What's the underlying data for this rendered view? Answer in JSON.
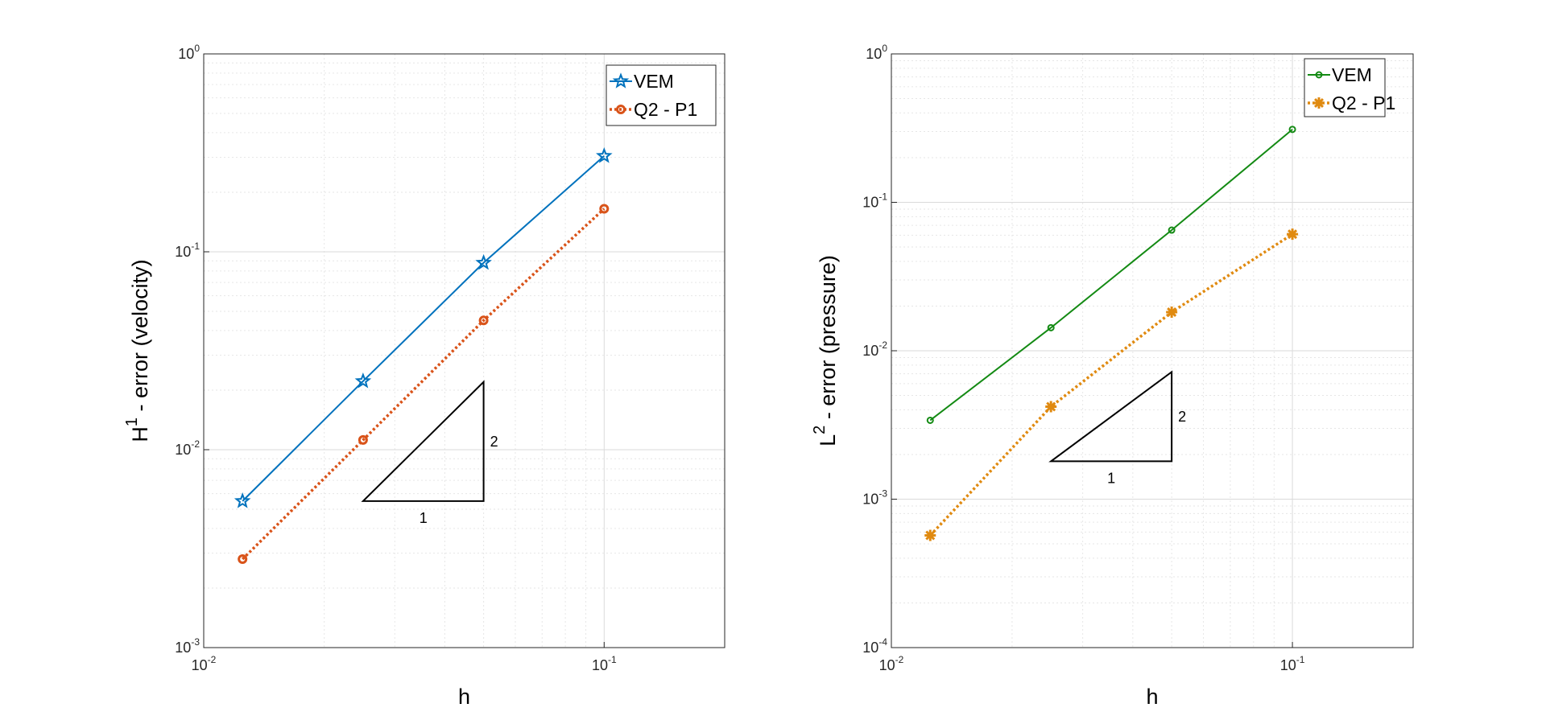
{
  "chart_data": [
    {
      "type": "line",
      "xscale": "log",
      "yscale": "log",
      "xlabel": "h",
      "ylabel": "H",
      "ylabel_sup": "1",
      "ylabel_rest": " - error (velocity)",
      "xlim": [
        0.01,
        0.2
      ],
      "ylim": [
        0.001,
        1
      ],
      "xticks": [
        {
          "base": "10",
          "exp": "-2",
          "value": 0.01
        },
        {
          "base": "10",
          "exp": "-1",
          "value": 0.1
        }
      ],
      "yticks": [
        {
          "base": "10",
          "exp": "-3",
          "value": 0.001
        },
        {
          "base": "10",
          "exp": "-2",
          "value": 0.01
        },
        {
          "base": "10",
          "exp": "-1",
          "value": 0.1
        },
        {
          "base": "10",
          "exp": "0",
          "value": 1
        }
      ],
      "legend_position": "top-right",
      "series": [
        {
          "name": "VEM",
          "color": "#0072BD",
          "marker": "star",
          "linestyle": "solid",
          "x": [
            0.0125,
            0.025,
            0.05,
            0.1
          ],
          "y": [
            0.0055,
            0.0222,
            0.088,
            0.305
          ]
        },
        {
          "name": "Q2 - P1",
          "color": "#D95319",
          "marker": "circle",
          "linestyle": "dotted",
          "x": [
            0.0125,
            0.025,
            0.05,
            0.1
          ],
          "y": [
            0.0028,
            0.0112,
            0.045,
            0.165
          ]
        }
      ],
      "slope_triangle": {
        "run_label": "1",
        "rise_label": "2",
        "x0": 0.025,
        "x1": 0.05,
        "y0": 0.0055,
        "y1": 0.022
      }
    },
    {
      "type": "line",
      "xscale": "log",
      "yscale": "log",
      "xlabel": "h",
      "ylabel": "L",
      "ylabel_sup": "2",
      "ylabel_rest": " - error (pressure)",
      "xlim": [
        0.01,
        0.2
      ],
      "ylim": [
        0.0001,
        1
      ],
      "xticks": [
        {
          "base": "10",
          "exp": "-2",
          "value": 0.01
        },
        {
          "base": "10",
          "exp": "-1",
          "value": 0.1
        }
      ],
      "yticks": [
        {
          "base": "10",
          "exp": "-4",
          "value": 0.0001
        },
        {
          "base": "10",
          "exp": "-3",
          "value": 0.001
        },
        {
          "base": "10",
          "exp": "-2",
          "value": 0.01
        },
        {
          "base": "10",
          "exp": "-1",
          "value": 0.1
        },
        {
          "base": "10",
          "exp": "0",
          "value": 1
        }
      ],
      "legend_position": "top-right",
      "series": [
        {
          "name": "VEM",
          "color": "#138A13",
          "marker": "circle-small",
          "linestyle": "solid",
          "x": [
            0.0125,
            0.025,
            0.05,
            0.1
          ],
          "y": [
            0.0034,
            0.0143,
            0.065,
            0.31
          ]
        },
        {
          "name": "Q2 - P1",
          "color": "#E08A10",
          "marker": "asterisk",
          "linestyle": "dotted",
          "x": [
            0.0125,
            0.025,
            0.05,
            0.1
          ],
          "y": [
            0.00057,
            0.0042,
            0.0182,
            0.061
          ]
        }
      ],
      "slope_triangle": {
        "run_label": "1",
        "rise_label": "2",
        "x0": 0.025,
        "x1": 0.05,
        "y0": 0.0018,
        "y1": 0.0072
      }
    }
  ]
}
